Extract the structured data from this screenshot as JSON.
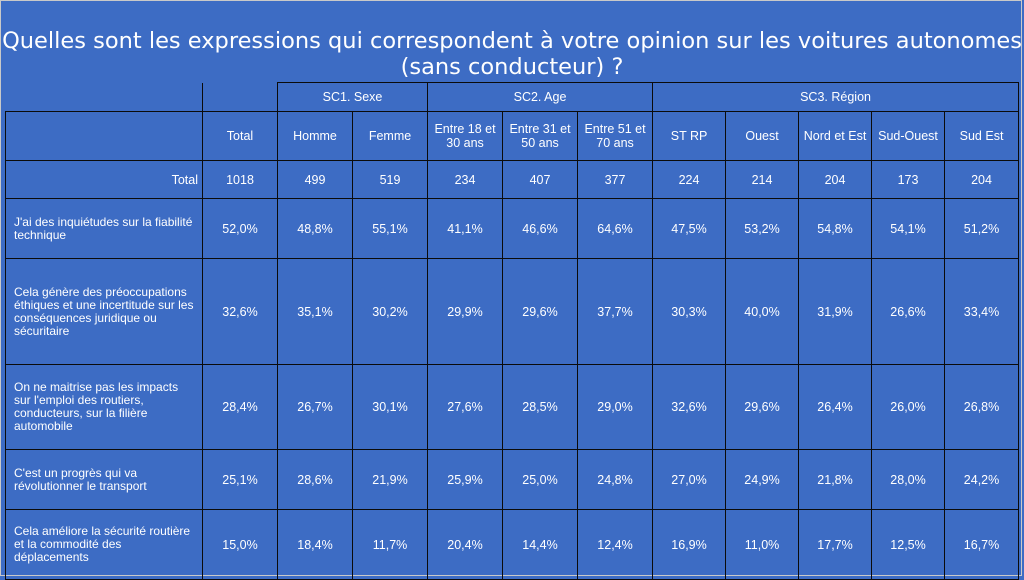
{
  "title_line1": "Quelles sont les expressions qui correspondent à votre opinion sur les voitures autonomes",
  "title_line2": "(sans conducteur) ?",
  "groups": {
    "sexe": "SC1. Sexe",
    "age": "SC2. Age",
    "region": "SC3. Région"
  },
  "columns": [
    "Total",
    "Homme",
    "Femme",
    "Entre 18 et 30 ans",
    "Entre 31 et 50 ans",
    "Entre 51 et 70 ans",
    "ST RP",
    "Ouest",
    "Nord et Est",
    "Sud-Ouest",
    "Sud Est"
  ],
  "total_row": {
    "label": "Total",
    "values": [
      "1018",
      "499",
      "519",
      "234",
      "407",
      "377",
      "224",
      "214",
      "204",
      "173",
      "204"
    ]
  },
  "rows": [
    {
      "label": "J'ai des inquiétudes sur la fiabilité technique",
      "values": [
        "52,0%",
        "48,8%",
        "55,1%",
        "41,1%",
        "46,6%",
        "64,6%",
        "47,5%",
        "53,2%",
        "54,8%",
        "54,1%",
        "51,2%"
      ]
    },
    {
      "label": "Cela génère des préoccupations éthiques et une incertitude sur les conséquences juridique ou sécuritaire",
      "values": [
        "32,6%",
        "35,1%",
        "30,2%",
        "29,9%",
        "29,6%",
        "37,7%",
        "30,3%",
        "40,0%",
        "31,9%",
        "26,6%",
        "33,4%"
      ]
    },
    {
      "label": "On ne maitrise pas les impacts sur l'emploi des routiers, conducteurs, sur la filière automobile",
      "values": [
        "28,4%",
        "26,7%",
        "30,1%",
        "27,6%",
        "28,5%",
        "29,0%",
        "32,6%",
        "29,6%",
        "26,4%",
        "26,0%",
        "26,8%"
      ]
    },
    {
      "label": "C'est un progrès qui va révolutionner le transport",
      "values": [
        "25,1%",
        "28,6%",
        "21,9%",
        "25,9%",
        "25,0%",
        "24,8%",
        "27,0%",
        "24,9%",
        "21,8%",
        "28,0%",
        "24,2%"
      ]
    },
    {
      "label": "Cela améliore la sécurité routière et la commodité des déplacements",
      "values": [
        "15,0%",
        "18,4%",
        "11,7%",
        "20,4%",
        "14,4%",
        "12,4%",
        "16,9%",
        "11,0%",
        "17,7%",
        "12,5%",
        "16,7%"
      ]
    }
  ]
}
